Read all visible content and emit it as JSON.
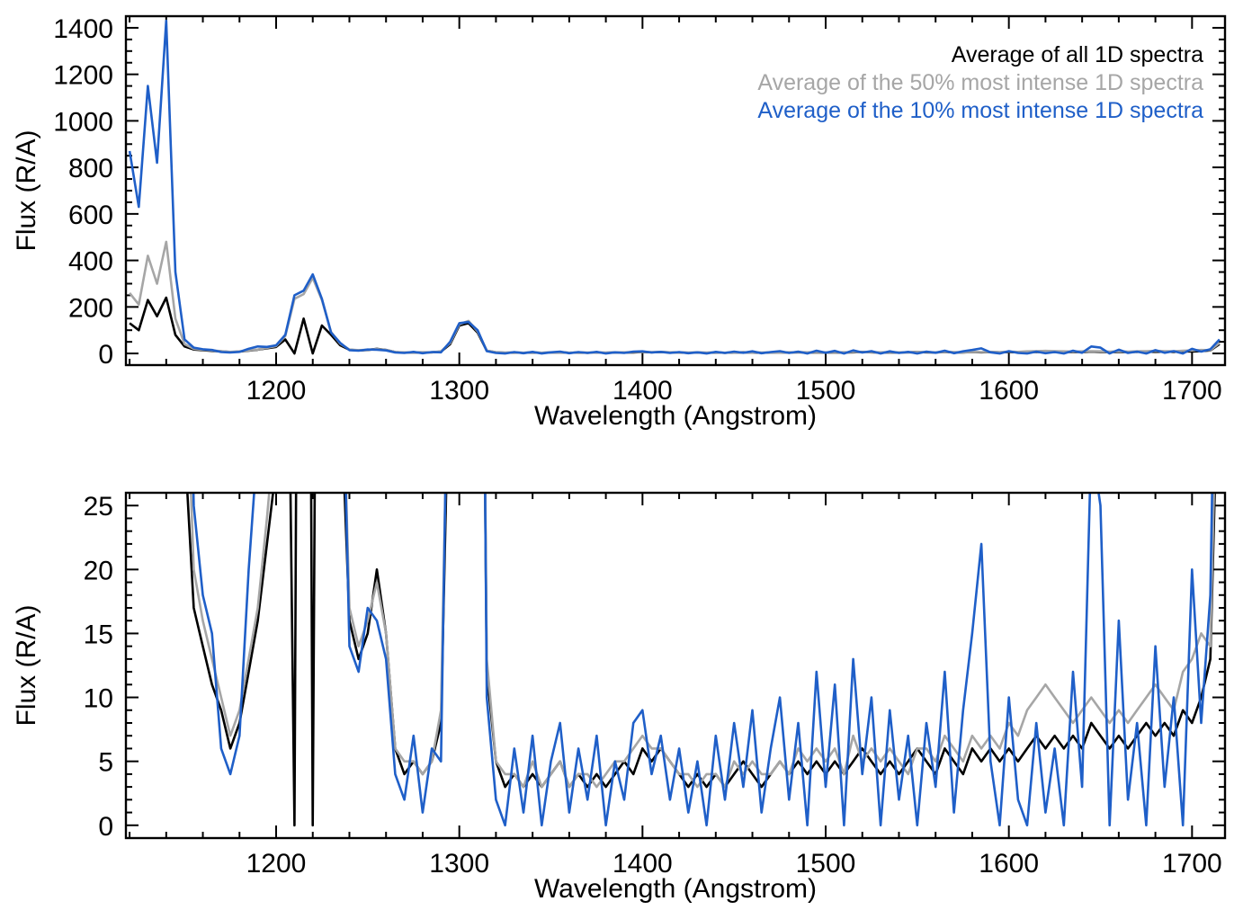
{
  "figure": {
    "xlabel": "Wavelength (Angstrom)",
    "ylabel": "Flux (R/A)",
    "background_color": "#ffffff",
    "frame_color": "#000000"
  },
  "chart_data": {
    "type": "line",
    "title": "",
    "xlabel": "Wavelength (Angstrom)",
    "ylabel": "Flux (R/A)",
    "legend_position": "top-right-inside-first-panel",
    "grid": false,
    "x": [
      1120,
      1125,
      1130,
      1135,
      1140,
      1145,
      1150,
      1155,
      1160,
      1165,
      1170,
      1175,
      1180,
      1185,
      1190,
      1195,
      1200,
      1205,
      1210,
      1215,
      1220,
      1225,
      1230,
      1235,
      1240,
      1245,
      1250,
      1255,
      1260,
      1265,
      1270,
      1275,
      1280,
      1285,
      1290,
      1295,
      1300,
      1305,
      1310,
      1315,
      1320,
      1325,
      1330,
      1335,
      1340,
      1345,
      1350,
      1355,
      1360,
      1365,
      1370,
      1375,
      1380,
      1385,
      1390,
      1395,
      1400,
      1405,
      1410,
      1415,
      1420,
      1425,
      1430,
      1435,
      1440,
      1445,
      1450,
      1455,
      1460,
      1465,
      1470,
      1475,
      1480,
      1485,
      1490,
      1495,
      1500,
      1505,
      1510,
      1515,
      1520,
      1525,
      1530,
      1535,
      1540,
      1545,
      1550,
      1555,
      1560,
      1565,
      1570,
      1575,
      1580,
      1585,
      1590,
      1595,
      1600,
      1605,
      1610,
      1615,
      1620,
      1625,
      1630,
      1635,
      1640,
      1645,
      1650,
      1655,
      1660,
      1665,
      1670,
      1675,
      1680,
      1685,
      1690,
      1695,
      1700,
      1705,
      1710,
      1715
    ],
    "series": [
      {
        "name": "Average of all 1D spectra",
        "color": "#000000",
        "values": [
          130,
          100,
          230,
          160,
          240,
          80,
          30,
          17,
          14,
          11,
          9,
          6,
          8,
          12,
          16,
          22,
          28,
          60,
          0,
          150,
          0,
          120,
          80,
          35,
          16,
          13,
          15,
          20,
          15,
          6,
          4,
          5,
          4,
          5,
          8,
          40,
          120,
          130,
          90,
          12,
          5,
          3,
          4,
          3,
          4,
          3,
          4,
          5,
          3,
          4,
          3,
          4,
          3,
          4,
          5,
          4,
          6,
          5,
          6,
          5,
          4,
          3,
          4,
          3,
          4,
          3,
          4,
          5,
          4,
          3,
          4,
          5,
          4,
          5,
          4,
          5,
          4,
          5,
          4,
          5,
          6,
          5,
          4,
          5,
          4,
          5,
          6,
          5,
          4,
          6,
          5,
          4,
          6,
          5,
          6,
          5,
          6,
          5,
          6,
          7,
          6,
          7,
          6,
          7,
          6,
          8,
          7,
          6,
          7,
          6,
          7,
          8,
          7,
          8,
          7,
          9,
          8,
          10,
          13,
          40
        ]
      },
      {
        "name": "Average of the 50% most intense 1D spectra",
        "color": "#a6a6a6",
        "values": [
          260,
          210,
          420,
          300,
          480,
          150,
          40,
          20,
          16,
          13,
          10,
          7,
          9,
          13,
          17,
          24,
          32,
          75,
          235,
          255,
          325,
          230,
          92,
          42,
          17,
          14,
          16,
          19,
          15,
          6,
          5,
          5,
          4,
          5,
          9,
          45,
          125,
          140,
          95,
          13,
          5,
          4,
          4,
          3,
          5,
          3,
          4,
          5,
          3,
          4,
          4,
          3,
          4,
          5,
          5,
          6,
          7,
          6,
          6,
          5,
          4,
          4,
          3,
          4,
          4,
          3,
          5,
          4,
          5,
          4,
          4,
          5,
          4,
          6,
          5,
          6,
          5,
          6,
          4,
          7,
          5,
          6,
          5,
          6,
          5,
          4,
          6,
          6,
          5,
          7,
          6,
          5,
          7,
          6,
          7,
          6,
          8,
          7,
          9,
          10,
          11,
          10,
          9,
          8,
          9,
          10,
          9,
          8,
          9,
          8,
          9,
          10,
          11,
          10,
          9,
          12,
          13,
          15,
          14,
          45
        ]
      },
      {
        "name": "Average of the 10% most intense 1D spectra",
        "color": "#1f5fc8",
        "values": [
          870,
          630,
          1150,
          820,
          1430,
          350,
          60,
          25,
          18,
          15,
          6,
          4,
          7,
          20,
          30,
          28,
          35,
          80,
          250,
          270,
          340,
          235,
          90,
          45,
          14,
          12,
          17,
          16,
          13,
          4,
          2,
          7,
          1,
          6,
          5,
          50,
          130,
          135,
          100,
          10,
          2,
          0,
          6,
          1,
          7,
          0,
          5,
          8,
          1,
          6,
          2,
          7,
          0,
          5,
          2,
          8,
          9,
          4,
          7,
          2,
          6,
          1,
          5,
          0,
          7,
          2,
          8,
          3,
          9,
          1,
          6,
          10,
          2,
          8,
          0,
          12,
          3,
          11,
          0,
          13,
          4,
          10,
          0,
          9,
          2,
          7,
          0,
          8,
          3,
          12,
          1,
          9,
          15,
          22,
          5,
          0,
          10,
          2,
          0,
          8,
          1,
          6,
          0,
          12,
          3,
          30,
          25,
          0,
          16,
          2,
          8,
          0,
          14,
          3,
          10,
          0,
          20,
          8,
          18,
          60
        ]
      }
    ],
    "panels": [
      {
        "name": "full-range",
        "ylabel": "Flux (R/A)",
        "xlabel": "Wavelength (Angstrom)",
        "ylim": [
          -50,
          1450
        ],
        "yticks": [
          0,
          200,
          400,
          600,
          800,
          1000,
          1200,
          1400
        ],
        "ytick_minor_step": 50,
        "xlim": [
          1118,
          1718
        ],
        "xticks": [
          1200,
          1300,
          1400,
          1500,
          1600,
          1700
        ],
        "xtick_minor_step": 20
      },
      {
        "name": "zoomed",
        "ylabel": "Flux (R/A)",
        "xlabel": "Wavelength (Angstrom)",
        "ylim": [
          -1,
          26
        ],
        "yticks": [
          0,
          5,
          10,
          15,
          20,
          25
        ],
        "ytick_minor_step": 1,
        "xlim": [
          1118,
          1718
        ],
        "xticks": [
          1200,
          1300,
          1400,
          1500,
          1600,
          1700
        ],
        "xtick_minor_step": 20
      }
    ]
  }
}
